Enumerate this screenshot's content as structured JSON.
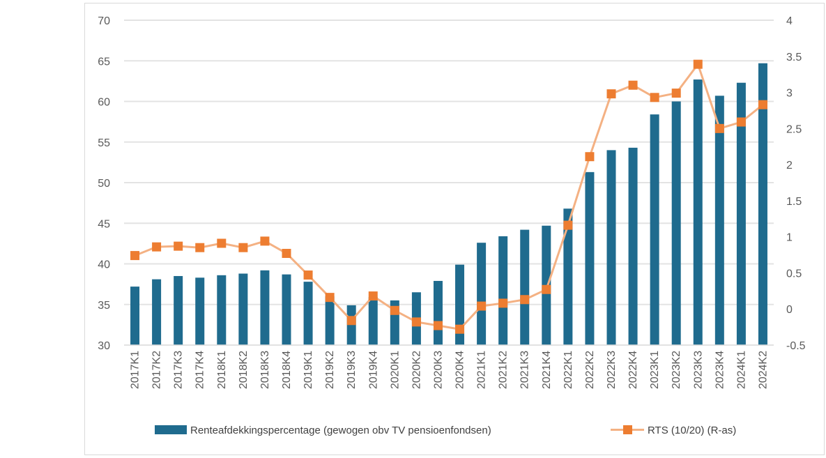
{
  "chart_data": {
    "type": "bar+line",
    "categories": [
      "2017K1",
      "2017K2",
      "2017K3",
      "2017K4",
      "2018K1",
      "2018K2",
      "2018K3",
      "2018K4",
      "2019K1",
      "2019K2",
      "2019K3",
      "2019K4",
      "2020K1",
      "2020K2",
      "2020K3",
      "2020K4",
      "2021K1",
      "2021K2",
      "2021K3",
      "2021K4",
      "2022K1",
      "2022K2",
      "2022K3",
      "2022K4",
      "2023K1",
      "2023K2",
      "2023K3",
      "2023K4",
      "2024K1",
      "2024K2"
    ],
    "series": [
      {
        "name": "Renteafdekkingspercentage (gewogen obv TV pensioenfondsen)",
        "type": "bar",
        "axis": "left",
        "color": "#1f6b8e",
        "values": [
          37.2,
          38.1,
          38.5,
          38.3,
          38.6,
          38.8,
          39.2,
          38.7,
          37.8,
          36.0,
          34.9,
          35.9,
          35.5,
          36.5,
          37.9,
          39.9,
          42.6,
          43.4,
          44.2,
          44.7,
          46.8,
          51.3,
          54.0,
          54.3,
          58.4,
          60.0,
          62.7,
          60.7,
          62.3,
          64.7
        ]
      },
      {
        "name": "RTS (10/20) (R-as)",
        "type": "line",
        "axis": "right",
        "color": "#f4b183",
        "marker_color": "#ed7d31",
        "values": [
          0.74,
          0.86,
          0.87,
          0.85,
          0.91,
          0.85,
          0.94,
          0.77,
          0.47,
          0.16,
          -0.16,
          0.18,
          -0.02,
          -0.18,
          -0.23,
          -0.28,
          0.04,
          0.08,
          0.13,
          0.27,
          1.16,
          2.11,
          2.98,
          3.1,
          2.93,
          2.99,
          3.39,
          2.5,
          2.59,
          2.83
        ]
      }
    ],
    "ylim_left": [
      30,
      70
    ],
    "yticks_left": [
      "30",
      "35",
      "40",
      "45",
      "50",
      "55",
      "60",
      "65",
      "70"
    ],
    "ylim_right": [
      -0.5,
      4
    ],
    "yticks_right": [
      "-0.5",
      "0",
      "0.5",
      "1",
      "1.5",
      "2",
      "2.5",
      "3",
      "3.5",
      "4"
    ],
    "grid": true,
    "legend_position": "bottom"
  },
  "legend": {
    "bar_label": "Renteafdekkingspercentage (gewogen obv TV pensioenfondsen)",
    "line_label": "RTS (10/20) (R-as)"
  }
}
